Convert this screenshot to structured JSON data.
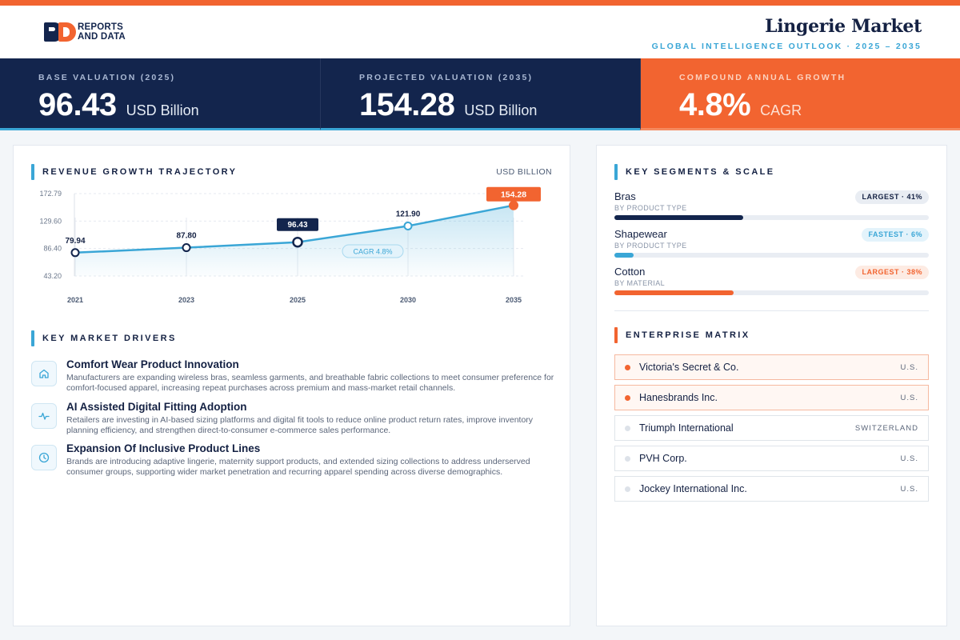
{
  "brand": {
    "line1": "REPORTS",
    "line2": "AND DATA"
  },
  "header": {
    "title": "Lingerie Market",
    "subtitle": "GLOBAL INTELLIGENCE OUTLOOK · 2025 – 2035"
  },
  "kpis": [
    {
      "label": "BASE VALUATION (2025)",
      "value": "96.43",
      "unit": "USD Billion"
    },
    {
      "label": "PROJECTED VALUATION (2035)",
      "value": "154.28",
      "unit": "USD Billion"
    },
    {
      "label": "COMPOUND ANNUAL GROWTH",
      "value": "4.8%",
      "unit": "CAGR"
    }
  ],
  "revenue": {
    "title": "REVENUE GROWTH TRAJECTORY",
    "unit": "USD BILLION",
    "cagr_label": "CAGR 4.8%"
  },
  "chart_data": {
    "type": "area",
    "title": "REVENUE GROWTH TRAJECTORY",
    "ylabel": "USD BILLION",
    "categories": [
      "2021",
      "2023",
      "2025",
      "2030",
      "2035"
    ],
    "values": [
      79.94,
      87.8,
      96.43,
      121.9,
      154.28
    ],
    "value_labels": [
      "79.94",
      "87.80",
      "96.43",
      "121.90",
      "154.28"
    ],
    "y_ticks": [
      "172.79",
      "129.60",
      "86.40",
      "43.20"
    ],
    "y_tick_values": [
      172.79,
      129.6,
      86.4,
      43.2
    ],
    "ylim": [
      43.2,
      172.79
    ],
    "highlight": {
      "base_index": 2,
      "projected_index": 4
    },
    "grid": true,
    "colors": {
      "line": "#3aa6d6",
      "base": "#13254d",
      "projected": "#f26430"
    }
  },
  "drivers": {
    "title": "KEY MARKET DRIVERS",
    "items": [
      {
        "icon": "home-icon",
        "title": "Comfort Wear Product Innovation",
        "desc": "Manufacturers are expanding wireless bras, seamless garments, and breathable fabric collections to meet consumer preference for comfort-focused apparel, increasing repeat purchases across premium and mass-market retail channels."
      },
      {
        "icon": "activity-icon",
        "title": "AI Assisted Digital Fitting Adoption",
        "desc": "Retailers are investing in AI-based sizing platforms and digital fit tools to reduce online product return rates, improve inventory planning efficiency, and strengthen direct-to-consumer e-commerce sales performance."
      },
      {
        "icon": "clock-icon",
        "title": "Expansion Of Inclusive Product Lines",
        "desc": "Brands are introducing adaptive lingerie, maternity support products, and extended sizing collections to address underserved consumer groups, supporting wider market penetration and recurring apparel spending across diverse demographics."
      }
    ]
  },
  "segments": {
    "title": "KEY SEGMENTS & SCALE",
    "items": [
      {
        "name": "Bras",
        "category": "BY PRODUCT TYPE",
        "badge": "LARGEST · 41%",
        "share": 41,
        "color": "#13254d"
      },
      {
        "name": "Shapewear",
        "category": "BY PRODUCT TYPE",
        "badge": "FASTEST · 6%",
        "share": 6,
        "color": "#3aa6d6"
      },
      {
        "name": "Cotton",
        "category": "BY MATERIAL",
        "badge": "LARGEST · 38%",
        "share": 38,
        "color": "#f26430"
      }
    ]
  },
  "matrix": {
    "title": "ENTERPRISE MATRIX",
    "items": [
      {
        "name": "Victoria's Secret & Co.",
        "country": "U.S.",
        "highlight": true
      },
      {
        "name": "Hanesbrands Inc.",
        "country": "U.S.",
        "highlight": true
      },
      {
        "name": "Triumph International",
        "country": "SWITZERLAND",
        "highlight": false
      },
      {
        "name": "PVH Corp.",
        "country": "U.S.",
        "highlight": false
      },
      {
        "name": "Jockey International Inc.",
        "country": "U.S.",
        "highlight": false
      }
    ]
  }
}
